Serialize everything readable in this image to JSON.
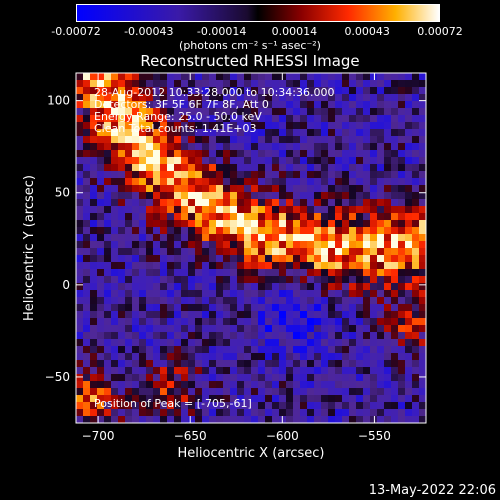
{
  "chart_data": {
    "type": "heatmap",
    "title": "Reconstructed RHESSI Image",
    "xlabel": "Heliocentric X (arcsec)",
    "ylabel": "Heliocentric Y (arcsec)",
    "xlim": [
      -712,
      -522
    ],
    "ylim": [
      -75,
      115
    ],
    "x_ticks": [
      -700,
      -650,
      -600,
      -550
    ],
    "y_ticks": [
      -50,
      0,
      50,
      100
    ],
    "colorbar": {
      "ticks": [
        "-0.00072",
        "-0.00043",
        "-0.00014",
        "0.00014",
        "0.00043",
        "0.00072"
      ],
      "units": "(photons cm⁻² s⁻¹ asec⁻²)",
      "range": [
        -0.00072,
        0.00072
      ]
    },
    "annotations": [
      "28-Aug-2012 10:33:28.000 to 10:34:36.000",
      "Detectors: 3F 5F 6F 7F 8F, Att 0",
      "Energy Range: 25.0 - 50.0 keV",
      "Clean     Total counts: 1.41E+03"
    ],
    "peak_label": "Position of Peak = [-705,-61]",
    "peak_position": [
      -705,
      -61
    ]
  },
  "footer": {
    "timestamp": "13-May-2022 22:06"
  }
}
